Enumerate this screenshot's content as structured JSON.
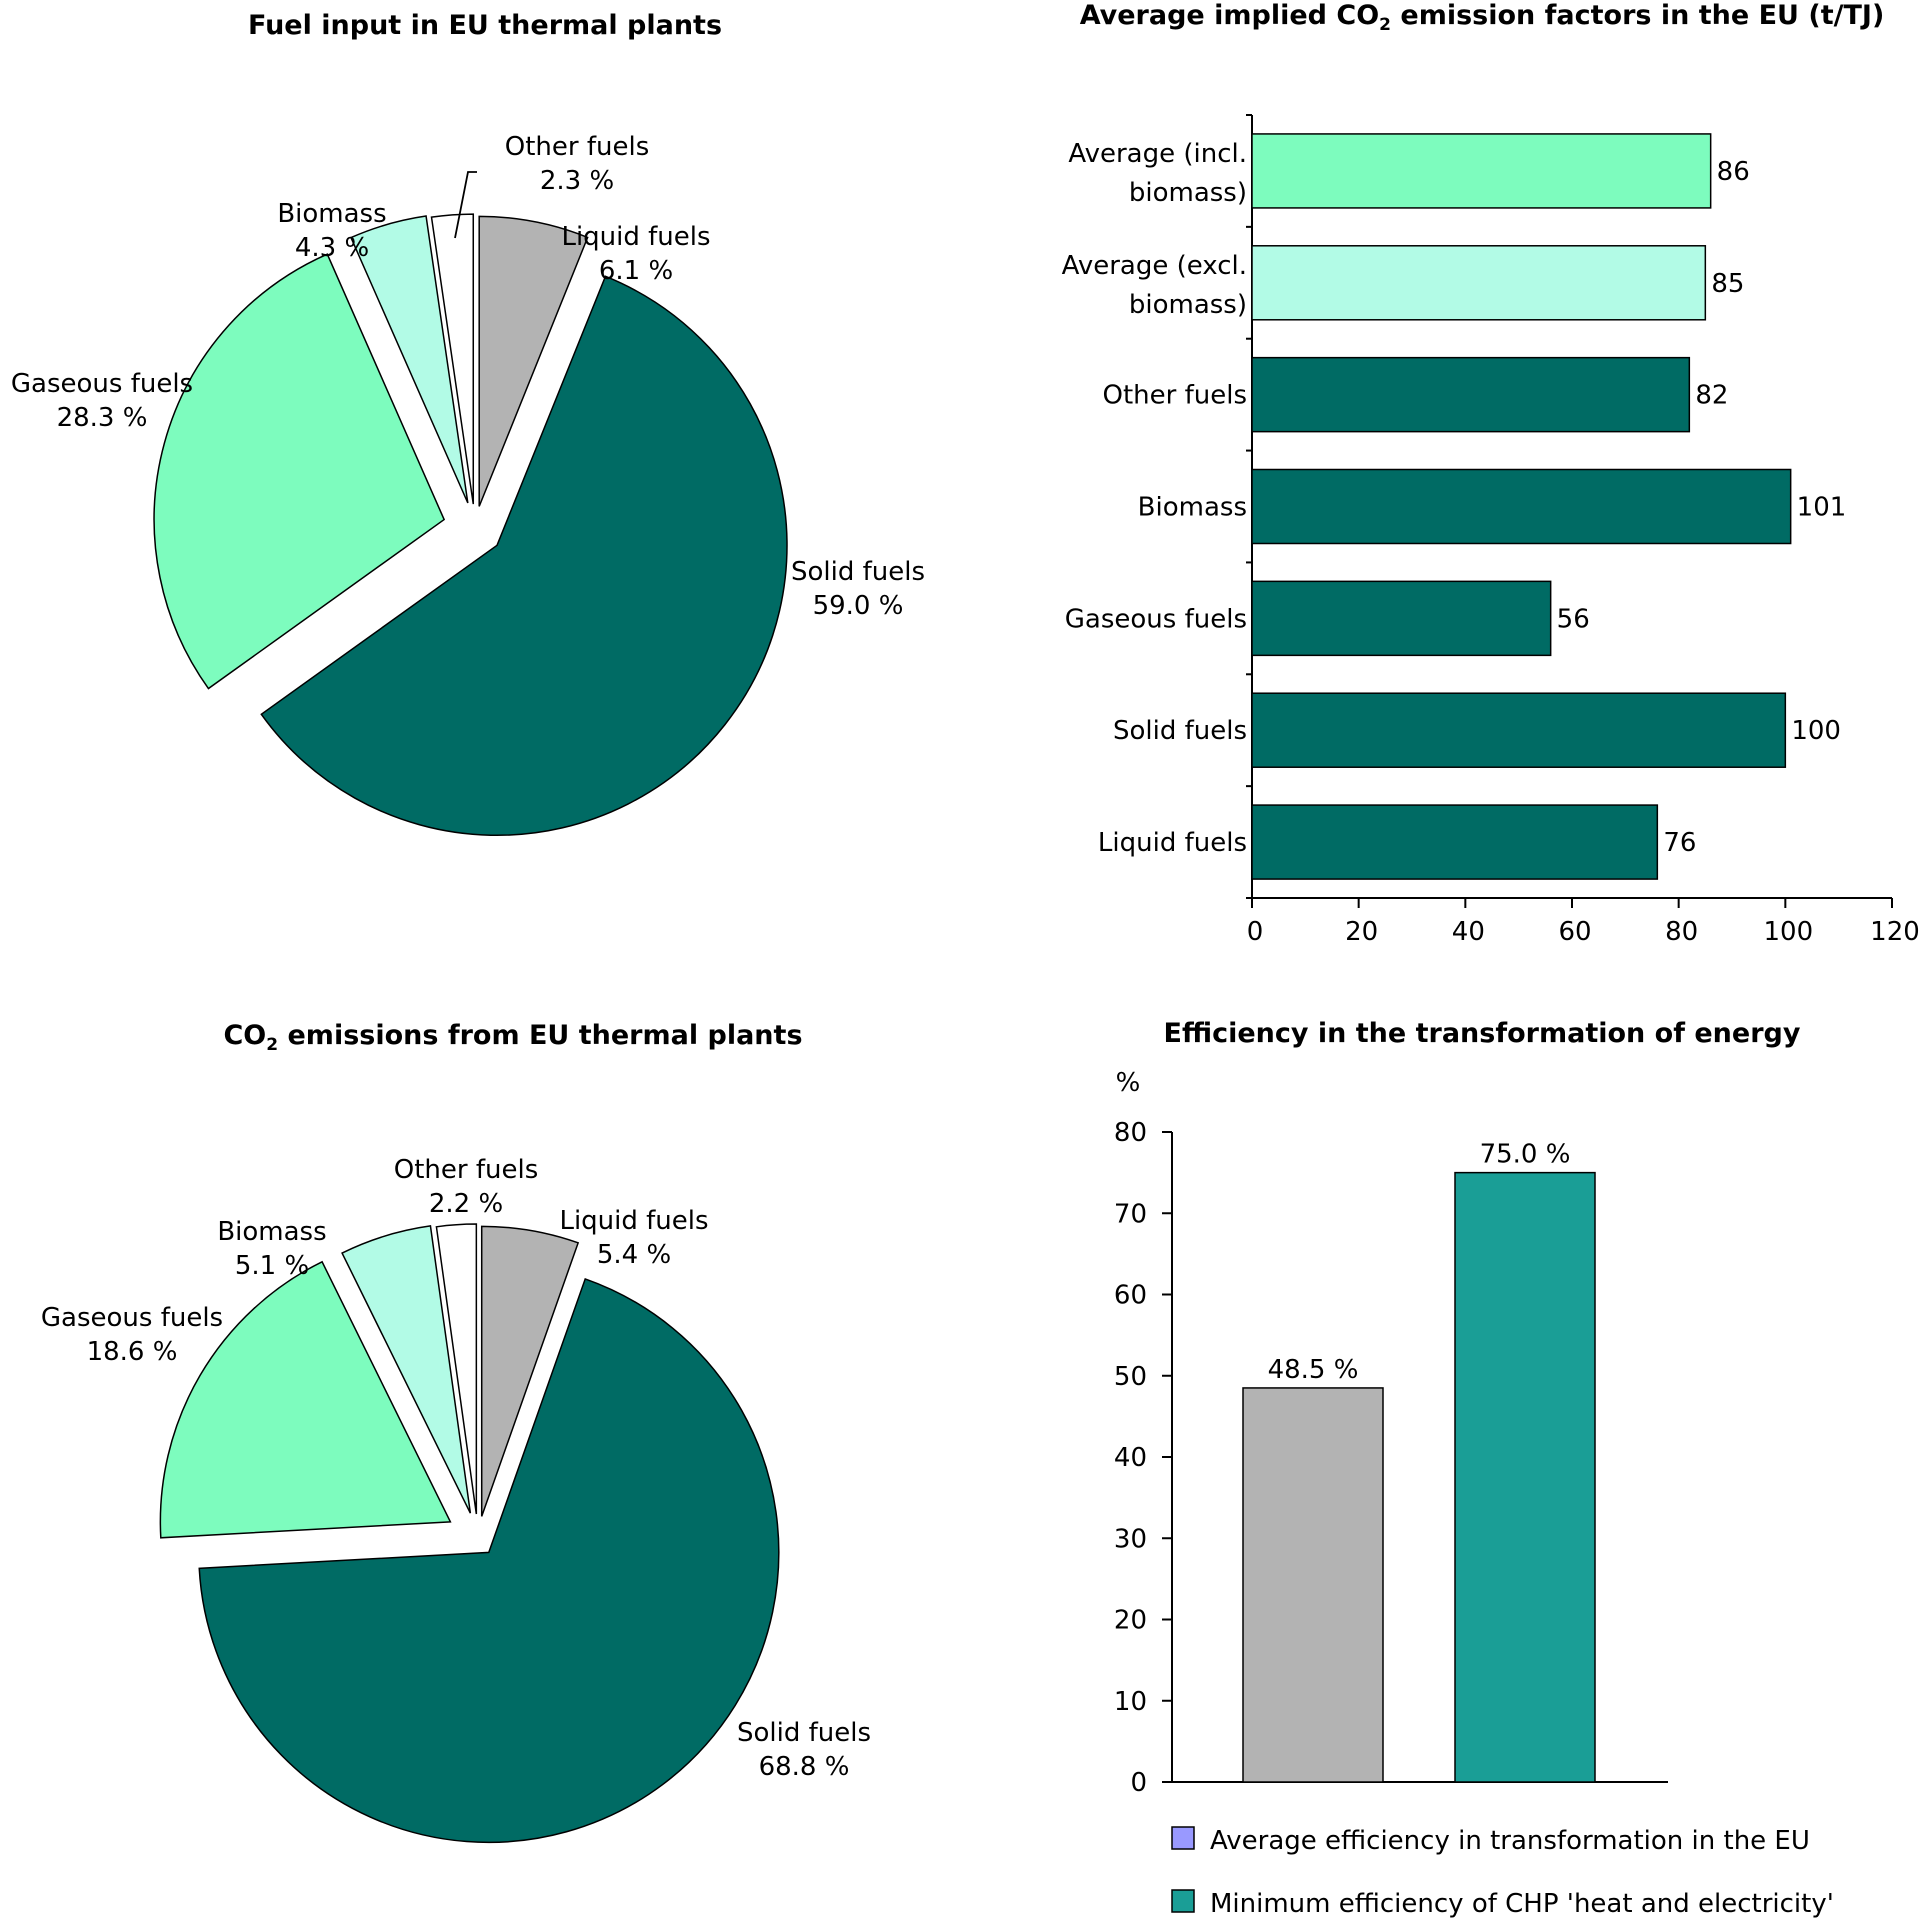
{
  "chart_data": [
    {
      "type": "pie",
      "title": "Fuel input in EU thermal plants",
      "slices": [
        {
          "label": "Liquid fuels",
          "value": 6.1,
          "value_label": "6.1 %",
          "color": "#b3b3b3"
        },
        {
          "label": "Solid fuels",
          "value": 59.0,
          "value_label": "59.0 %",
          "color": "#006b64"
        },
        {
          "label": "Gaseous fuels",
          "value": 28.3,
          "value_label": "28.3 %",
          "color": "#7dfcbe"
        },
        {
          "label": "Biomass",
          "value": 4.3,
          "value_label": "4.3 %",
          "color": "#b2fbe6"
        },
        {
          "label": "Other fuels",
          "value": 2.3,
          "value_label": "2.3 %",
          "color": "#ffffff"
        }
      ]
    },
    {
      "type": "bar",
      "orientation": "horizontal",
      "title_parts": {
        "before": "Average implied CO",
        "sub": "2",
        "after": " emission factors in the EU (t/TJ)"
      },
      "categories": [
        "Average (incl. biomass)",
        "Average (excl. biomass)",
        "Other fuels",
        "Biomass",
        "Gaseous fuels",
        "Solid fuels",
        "Liquid fuels"
      ],
      "category_lines": [
        [
          "Average (incl.",
          "biomass)"
        ],
        [
          "Average (excl.",
          "biomass)"
        ],
        [
          "Other fuels"
        ],
        [
          "Biomass"
        ],
        [
          "Gaseous fuels"
        ],
        [
          "Solid fuels"
        ],
        [
          "Liquid fuels"
        ]
      ],
      "values": [
        86,
        85,
        82,
        101,
        56,
        100,
        76
      ],
      "colors": [
        "#7dfcbe",
        "#b2fbe6",
        "#006b64",
        "#006b64",
        "#006b64",
        "#006b64",
        "#006b64"
      ],
      "xlim": [
        0,
        120
      ],
      "xticks": [
        0,
        20,
        40,
        60,
        80,
        100,
        120
      ]
    },
    {
      "type": "pie",
      "title_parts": {
        "before": "CO",
        "sub": "2",
        "after": " emissions from EU thermal plants"
      },
      "slices": [
        {
          "label": "Liquid fuels",
          "value": 5.4,
          "value_label": "5.4 %",
          "color": "#b3b3b3"
        },
        {
          "label": "Solid fuels",
          "value": 68.8,
          "value_label": "68.8 %",
          "color": "#006b64"
        },
        {
          "label": "Gaseous fuels",
          "value": 18.6,
          "value_label": "18.6 %",
          "color": "#7dfcbe"
        },
        {
          "label": "Biomass",
          "value": 5.1,
          "value_label": "5.1 %",
          "color": "#b2fbe6"
        },
        {
          "label": "Other fuels",
          "value": 2.2,
          "value_label": "2.2 %",
          "color": "#ffffff"
        }
      ]
    },
    {
      "type": "bar",
      "title": "Efficiency in the transformation of energy",
      "ylabel": "%",
      "ylim": [
        0,
        80
      ],
      "yticks": [
        0,
        10,
        20,
        30,
        40,
        50,
        60,
        70,
        80
      ],
      "bars": [
        {
          "value": 48.5,
          "value_label": "48.5 %",
          "color": "#b3b3b3"
        },
        {
          "value": 75.0,
          "value_label": "75.0 %",
          "color": "#1a9e96"
        }
      ],
      "legend": [
        {
          "label": "Average efficiency in transformation in the EU",
          "color": "#9999ff"
        },
        {
          "label": "Minimum efficiency of CHP 'heat and electricity'",
          "color": "#1a9e96"
        }
      ]
    }
  ]
}
